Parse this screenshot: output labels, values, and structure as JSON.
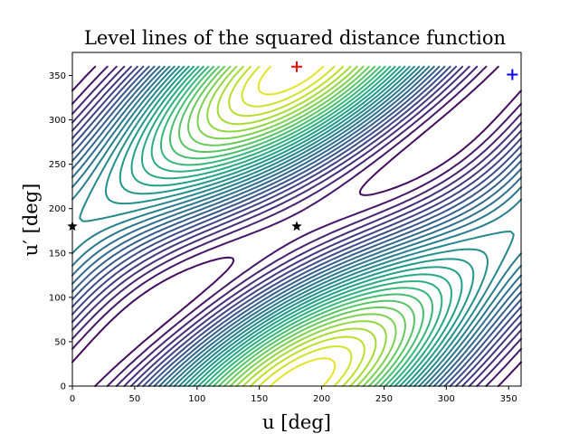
{
  "chart_data": {
    "type": "contour",
    "title": "Level lines of the squared distance function",
    "xlabel": "u [deg]",
    "ylabel": "u′ [deg]",
    "xlim": [
      0,
      360
    ],
    "ylim": [
      0,
      376
    ],
    "xticks": [
      "0",
      "50",
      "100",
      "150",
      "200",
      "250",
      "300",
      "350"
    ],
    "yticks": [
      "0",
      "50",
      "100",
      "150",
      "200",
      "250",
      "300",
      "350"
    ],
    "colormap": "viridis",
    "grid": false,
    "markers": [
      {
        "label": "red-plus",
        "u": 180,
        "u_prime": 360,
        "color": "#ff0000",
        "symbol": "+"
      },
      {
        "label": "blue-plus",
        "u": 353,
        "u_prime": 351,
        "color": "#0000ff",
        "symbol": "+"
      },
      {
        "label": "black-star-1",
        "u": 0,
        "u_prime": 180,
        "color": "#000000",
        "symbol": "★"
      },
      {
        "label": "black-star-2",
        "u": 180,
        "u_prime": 180,
        "color": "#000000",
        "symbol": "★"
      }
    ]
  }
}
